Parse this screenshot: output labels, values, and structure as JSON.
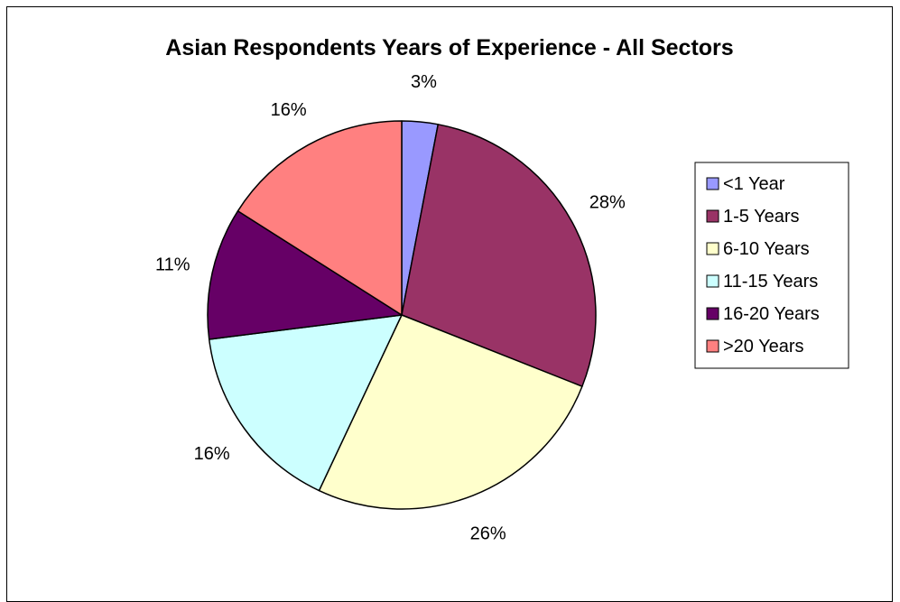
{
  "chart_data": {
    "type": "pie",
    "title": "Asian Respondents Years of Experience - All Sectors",
    "slices": [
      {
        "label": "<1 Year",
        "value": 3,
        "display": "3%",
        "color": "#9999FF"
      },
      {
        "label": "1-5 Years",
        "value": 28,
        "display": "28%",
        "color": "#993366"
      },
      {
        "label": "6-10 Years",
        "value": 26,
        "display": "26%",
        "color": "#FFFFCC"
      },
      {
        "label": "11-15 Years",
        "value": 16,
        "display": "16%",
        "color": "#CCFFFF"
      },
      {
        "label": "16-20 Years",
        "value": 11,
        "display": "11%",
        "color": "#660066"
      },
      {
        "label": ">20 Years",
        "value": 16,
        "display": "16%",
        "color": "#FF8080"
      }
    ],
    "start_angle": "top",
    "direction": "clockwise",
    "legend": {
      "position": "right"
    }
  }
}
